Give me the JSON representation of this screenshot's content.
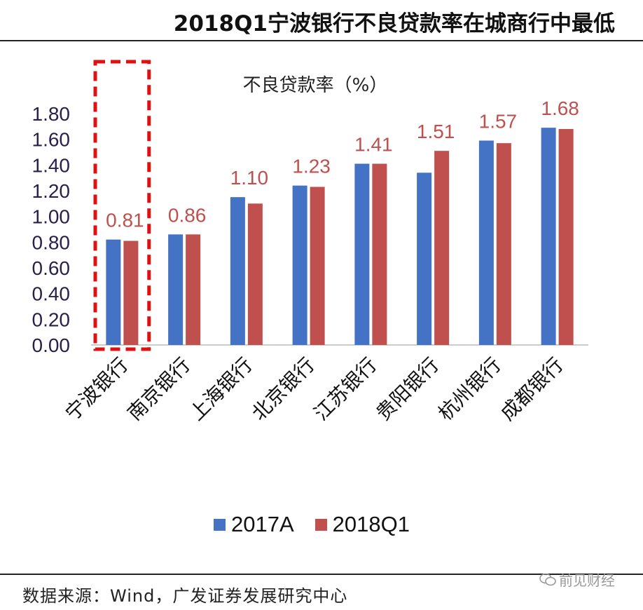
{
  "header": {
    "title": "2018Q1宁波银行不良贷款率在城商行中最低"
  },
  "footer": {
    "source": "数据来源：Wind，广发证券发展研究中心",
    "watermark": "前见财经"
  },
  "colors": {
    "series_2017": "#4472c4",
    "series_2018": "#c0504d",
    "label": "#c0504d",
    "highlight": "#e01010"
  },
  "chart_data": {
    "type": "bar",
    "title": "不良贷款率（%）",
    "categories": [
      "宁波银行",
      "南京银行",
      "上海银行",
      "北京银行",
      "江苏银行",
      "贵阳银行",
      "杭州银行",
      "成都银行"
    ],
    "series": [
      {
        "name": "2017A",
        "values": [
          0.82,
          0.86,
          1.15,
          1.24,
          1.41,
          1.34,
          1.59,
          1.69
        ]
      },
      {
        "name": "2018Q1",
        "values": [
          0.81,
          0.86,
          1.1,
          1.23,
          1.41,
          1.51,
          1.57,
          1.68
        ]
      }
    ],
    "data_labels": [
      "0.81",
      "0.86",
      "1.10",
      "1.23",
      "1.41",
      "1.51",
      "1.57",
      "1.68"
    ],
    "yticks": [
      "0.00",
      "0.20",
      "0.40",
      "0.60",
      "0.80",
      "1.00",
      "1.20",
      "1.40",
      "1.60",
      "1.80"
    ],
    "ylim": [
      0,
      1.8
    ],
    "grid": false,
    "legend_position": "bottom",
    "highlighted_category": "宁波银行"
  }
}
